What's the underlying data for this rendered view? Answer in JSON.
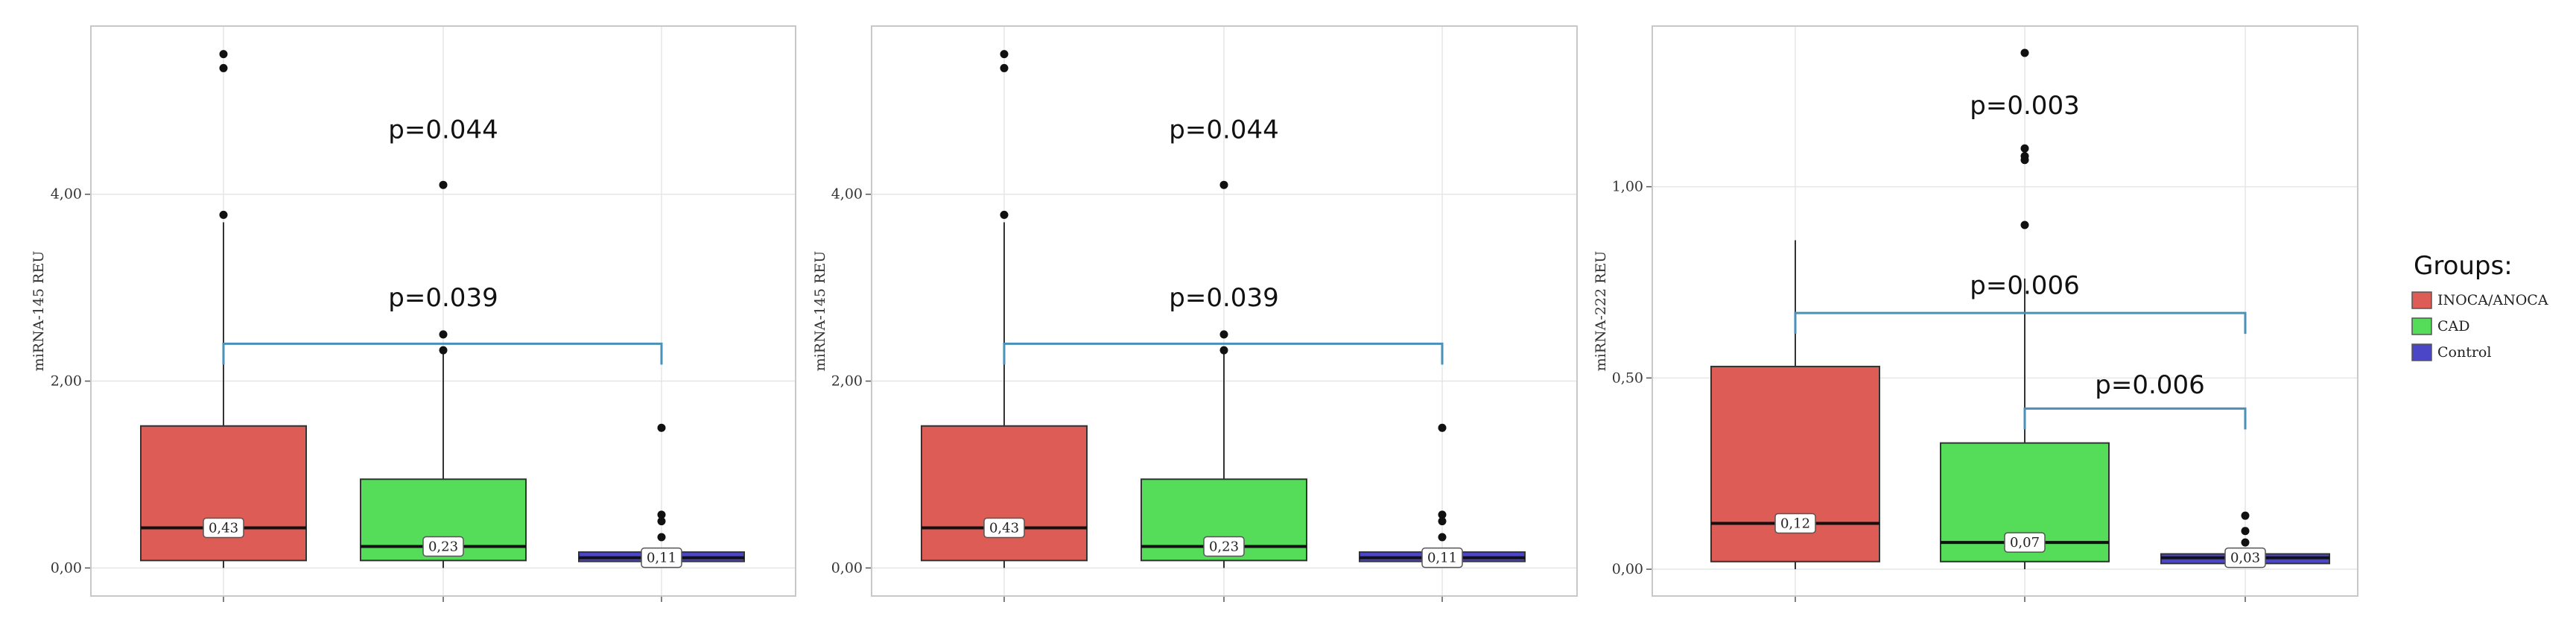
{
  "chart_data": [
    {
      "type": "box",
      "ylabel": "miRNA-145 REU",
      "ylim": [
        -0.3,
        5.8
      ],
      "yticks": [
        0,
        2,
        4
      ],
      "ytick_labels": [
        "0,00",
        "2,00",
        "4,00"
      ],
      "grid": true,
      "groups": [
        {
          "name": "INOCA/ANOCA",
          "color": "#dd5c55",
          "q1": 0.08,
          "median": 0.43,
          "q3": 1.52,
          "whisker_low": 0.0,
          "whisker_high": 3.7,
          "median_label": "0,43",
          "outliers": [
            5.5,
            5.35,
            3.78
          ]
        },
        {
          "name": "CAD",
          "color": "#55dd5a",
          "q1": 0.08,
          "median": 0.23,
          "q3": 0.95,
          "whisker_low": 0.0,
          "whisker_high": 2.3,
          "median_label": "0,23",
          "outliers": [
            4.1,
            2.5,
            2.33
          ]
        },
        {
          "name": "Control",
          "color": "#4b46c8",
          "q1": 0.07,
          "median": 0.11,
          "q3": 0.17,
          "whisker_low": 0.05,
          "whisker_high": 0.2,
          "median_label": "0,11",
          "outliers": [
            1.5,
            0.57,
            0.5,
            0.33
          ]
        }
      ],
      "annotations": [
        {
          "text": "p=0.044",
          "y": 4.6
        },
        {
          "text": "p=0.039",
          "y": 2.8
        }
      ],
      "brackets": [
        {
          "from": 0,
          "to": 2,
          "y": 2.4
        }
      ]
    },
    {
      "type": "box",
      "ylabel": "miRNA-145 REU",
      "ylim": [
        -0.3,
        5.8
      ],
      "yticks": [
        0,
        2,
        4
      ],
      "ytick_labels": [
        "0,00",
        "2,00",
        "4,00"
      ],
      "grid": true,
      "groups": [
        {
          "name": "INOCA/ANOCA",
          "color": "#dd5c55",
          "q1": 0.08,
          "median": 0.43,
          "q3": 1.52,
          "whisker_low": 0.0,
          "whisker_high": 3.7,
          "median_label": "0,43",
          "outliers": [
            5.5,
            5.35,
            3.78
          ]
        },
        {
          "name": "CAD",
          "color": "#55dd5a",
          "q1": 0.08,
          "median": 0.23,
          "q3": 0.95,
          "whisker_low": 0.0,
          "whisker_high": 2.3,
          "median_label": "0,23",
          "outliers": [
            4.1,
            2.5,
            2.33
          ]
        },
        {
          "name": "Control",
          "color": "#4b46c8",
          "q1": 0.07,
          "median": 0.11,
          "q3": 0.17,
          "whisker_low": 0.05,
          "whisker_high": 0.2,
          "median_label": "0,11",
          "outliers": [
            1.5,
            0.57,
            0.5,
            0.33
          ]
        }
      ],
      "annotations": [
        {
          "text": "p=0.044",
          "y": 4.6
        },
        {
          "text": "p=0.039",
          "y": 2.8
        }
      ],
      "brackets": [
        {
          "from": 0,
          "to": 2,
          "y": 2.4
        }
      ]
    },
    {
      "type": "box",
      "ylabel": "miRNA-222 REU",
      "ylim": [
        -0.07,
        1.42
      ],
      "yticks": [
        0,
        0.5,
        1.0
      ],
      "ytick_labels": [
        "0,00",
        "0,50",
        "1,00"
      ],
      "grid": true,
      "groups": [
        {
          "name": "INOCA/ANOCA",
          "color": "#dd5c55",
          "q1": 0.02,
          "median": 0.12,
          "q3": 0.53,
          "whisker_low": 0.0,
          "whisker_high": 0.86,
          "median_label": "0,12",
          "outliers": []
        },
        {
          "name": "CAD",
          "color": "#55dd5a",
          "q1": 0.02,
          "median": 0.07,
          "q3": 0.33,
          "whisker_low": 0.0,
          "whisker_high": 0.76,
          "median_label": "0,07",
          "outliers": [
            1.35,
            1.1,
            1.08,
            1.07,
            0.9
          ]
        },
        {
          "name": "Control",
          "color": "#4b46c8",
          "q1": 0.015,
          "median": 0.03,
          "q3": 0.04,
          "whisker_low": 0.01,
          "whisker_high": 0.045,
          "median_label": "0,03",
          "outliers": [
            0.14,
            0.1,
            0.07
          ]
        }
      ],
      "annotations": [
        {
          "text": "p=0.003",
          "y": 1.19
        },
        {
          "text": "p=0.006",
          "y": 0.72
        },
        {
          "text": "p=0.006",
          "y": 0.46
        }
      ],
      "brackets": [
        {
          "from": 0,
          "to": 2,
          "y": 0.67
        },
        {
          "from": 1,
          "to": 2,
          "y": 0.42
        }
      ]
    }
  ],
  "legend": {
    "title": "Groups:",
    "position": "right",
    "items": [
      {
        "label": "INOCA/ANOCA",
        "color": "#dd5c55"
      },
      {
        "label": "CAD",
        "color": "#55dd5a"
      },
      {
        "label": "Control",
        "color": "#4b46c8"
      }
    ]
  },
  "colors": {
    "bracket": "#4a90b8",
    "grid": "#e6e6e6",
    "panel_border": "#c8c8c8"
  }
}
